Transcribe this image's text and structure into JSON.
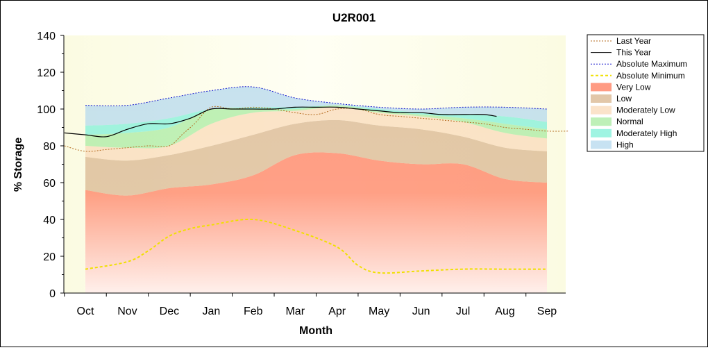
{
  "chart_data": {
    "type": "area",
    "title": "U2R001",
    "xlabel": "Month",
    "ylabel": "% Storage",
    "ylim": [
      0,
      140
    ],
    "yticks": [
      0,
      20,
      40,
      60,
      80,
      100,
      120,
      140
    ],
    "months": [
      "Oct",
      "Nov",
      "Dec",
      "Jan",
      "Feb",
      "Mar",
      "Apr",
      "May",
      "Jun",
      "Jul",
      "Aug",
      "Sep"
    ],
    "legend_position": "right",
    "bands": [
      {
        "name": "Very Low",
        "color": "#ff7a5a",
        "x": [
          0,
          1,
          2,
          3,
          4,
          5,
          6,
          7,
          8,
          9,
          10,
          11
        ],
        "lower": [
          0,
          0,
          0,
          0,
          0,
          0,
          0,
          0,
          0,
          0,
          0,
          0
        ],
        "upper": [
          56,
          53,
          57,
          59,
          64,
          75,
          76,
          72,
          70,
          70,
          62,
          60
        ]
      },
      {
        "name": "Low",
        "color": "#d8b48c",
        "x": [
          0,
          1,
          2,
          3,
          4,
          5,
          6,
          7,
          8,
          9,
          10,
          11
        ],
        "lower": [
          56,
          53,
          57,
          59,
          64,
          75,
          76,
          72,
          70,
          70,
          62,
          60
        ],
        "upper": [
          74,
          72,
          75,
          80,
          86,
          92,
          94,
          91,
          89,
          85,
          79,
          77
        ]
      },
      {
        "name": "Moderately Low",
        "color": "#fad9b8",
        "x": [
          0,
          1,
          2,
          3,
          4,
          5,
          6,
          7,
          8,
          9,
          10,
          11
        ],
        "lower": [
          74,
          72,
          75,
          80,
          86,
          92,
          94,
          91,
          89,
          85,
          79,
          77
        ],
        "upper": [
          80,
          79,
          80,
          92,
          98,
          99,
          101,
          98,
          96,
          93,
          87,
          84
        ]
      },
      {
        "name": "Normal",
        "color": "#a8eba0",
        "x": [
          0,
          1,
          2,
          3,
          4,
          5,
          6,
          7,
          8,
          9,
          10,
          11
        ],
        "lower": [
          80,
          79,
          80,
          92,
          98,
          99,
          101,
          98,
          96,
          93,
          87,
          84
        ],
        "upper": [
          86,
          87,
          90,
          100,
          100,
          100,
          102,
          99,
          97,
          95,
          92,
          89
        ]
      },
      {
        "name": "Moderately High",
        "color": "#7ff0d8",
        "x": [
          0,
          1,
          2,
          3,
          4,
          5,
          6,
          7,
          8,
          9,
          10,
          11
        ],
        "lower": [
          86,
          87,
          90,
          100,
          100,
          100,
          102,
          99,
          97,
          95,
          92,
          89
        ],
        "upper": [
          91,
          92,
          95,
          100,
          101,
          101,
          102,
          100,
          98,
          97,
          96,
          93
        ]
      },
      {
        "name": "High",
        "color": "#b4d8ee",
        "x": [
          0,
          1,
          2,
          3,
          4,
          5,
          6,
          7,
          8,
          9,
          10,
          11
        ],
        "lower": [
          91,
          92,
          95,
          100,
          101,
          101,
          102,
          100,
          98,
          97,
          96,
          93
        ],
        "upper": [
          102,
          102,
          106,
          110,
          112,
          106,
          103,
          101,
          100,
          101,
          101,
          100
        ]
      }
    ],
    "series": [
      {
        "name": "Last Year",
        "color": "#b36a1e",
        "dash": "2,2",
        "x": [
          -0.5,
          0,
          0.5,
          1,
          1.5,
          2,
          2.3,
          2.6,
          3,
          3.5,
          4,
          4.5,
          5,
          5.5,
          6,
          6.5,
          7,
          7.5,
          8,
          8.5,
          9,
          9.5,
          10,
          10.5,
          11,
          11.5
        ],
        "values": [
          80,
          77,
          78,
          79,
          80,
          80,
          86,
          92,
          101,
          100,
          101,
          100,
          98,
          97,
          100,
          100,
          97,
          96,
          95,
          94,
          93,
          92,
          90,
          89,
          88,
          88
        ]
      },
      {
        "name": "This Year",
        "color": "#000000",
        "dash": "",
        "x": [
          -0.5,
          0,
          0.5,
          1,
          1.5,
          2,
          2.5,
          3,
          3.5,
          4,
          4.5,
          5,
          5.5,
          6,
          6.5,
          7,
          7.5,
          8,
          8.5,
          9,
          9.5,
          9.8
        ],
        "values": [
          87,
          86,
          85,
          89,
          92,
          92,
          95,
          100,
          100,
          100,
          100,
          101,
          101,
          101,
          100,
          99,
          98,
          98,
          97,
          97,
          97,
          96
        ]
      },
      {
        "name": "Absolute Maximum",
        "color": "#1010cc",
        "dash": "2,2",
        "x": [
          0,
          1,
          2,
          3,
          4,
          5,
          6,
          7,
          8,
          9,
          10,
          11
        ],
        "values": [
          102,
          102,
          106,
          110,
          112,
          106,
          103,
          101,
          100,
          101,
          101,
          100
        ]
      },
      {
        "name": "Absolute Minimum",
        "color": "#f0e000",
        "dash": "4,3",
        "x": [
          0,
          1,
          1.5,
          2,
          2.5,
          3,
          4,
          5,
          6,
          6.5,
          7,
          8,
          9,
          10,
          11
        ],
        "values": [
          13,
          17,
          23,
          31,
          35,
          37,
          40,
          34,
          25,
          15,
          11,
          12,
          13,
          13,
          13
        ]
      }
    ]
  },
  "legend": {
    "items": [
      {
        "label": "Last Year",
        "kind": "line",
        "color": "#b36a1e",
        "dash": "2,2"
      },
      {
        "label": "This Year",
        "kind": "line",
        "color": "#000000",
        "dash": ""
      },
      {
        "label": "Absolute Maximum",
        "kind": "line",
        "color": "#1010cc",
        "dash": "2,2"
      },
      {
        "label": "Absolute Minimum",
        "kind": "line",
        "color": "#f0e000",
        "dash": "4,3"
      },
      {
        "label": "Very Low",
        "kind": "patch",
        "color": "#ff7a5a"
      },
      {
        "label": "Low",
        "kind": "patch",
        "color": "#d8b48c"
      },
      {
        "label": "Moderately Low",
        "kind": "patch",
        "color": "#fad9b8"
      },
      {
        "label": "Normal",
        "kind": "patch",
        "color": "#a8eba0"
      },
      {
        "label": "Moderately High",
        "kind": "patch",
        "color": "#7ff0d8"
      },
      {
        "label": "High",
        "kind": "patch",
        "color": "#b4d8ee"
      }
    ]
  }
}
